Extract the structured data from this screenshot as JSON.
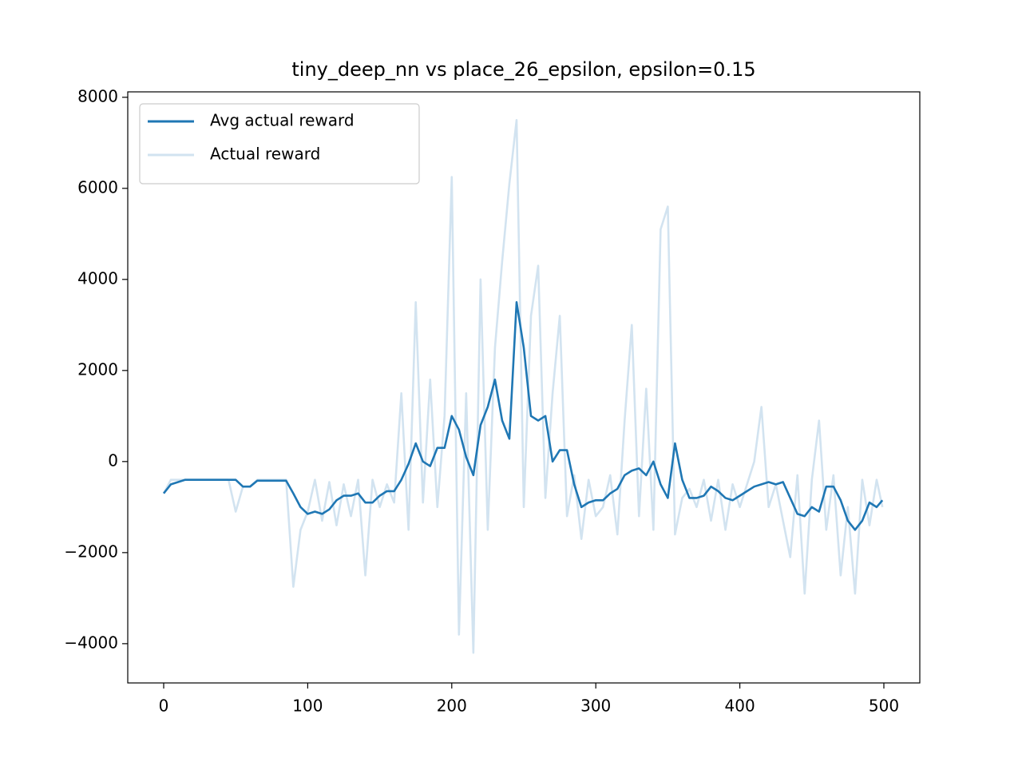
{
  "chart_data": {
    "type": "line",
    "title": "tiny_deep_nn vs place_26_epsilon, epsilon=0.15",
    "x": [
      0,
      5,
      10,
      15,
      20,
      25,
      30,
      35,
      40,
      45,
      50,
      55,
      60,
      65,
      70,
      75,
      80,
      85,
      90,
      95,
      100,
      105,
      110,
      115,
      120,
      125,
      130,
      135,
      140,
      145,
      150,
      155,
      160,
      165,
      170,
      175,
      180,
      185,
      190,
      195,
      200,
      205,
      210,
      215,
      220,
      225,
      230,
      235,
      240,
      245,
      250,
      255,
      260,
      265,
      270,
      275,
      280,
      285,
      290,
      295,
      300,
      305,
      310,
      315,
      320,
      325,
      330,
      335,
      340,
      345,
      350,
      355,
      360,
      365,
      370,
      375,
      380,
      385,
      390,
      395,
      400,
      405,
      410,
      415,
      420,
      425,
      430,
      435,
      440,
      445,
      450,
      455,
      460,
      465,
      470,
      475,
      480,
      485,
      490,
      495,
      499
    ],
    "series": [
      {
        "name": "Avg actual reward",
        "color": "#1f77b4",
        "values": [
          -700,
          -500,
          -450,
          -400,
          -400,
          -400,
          -400,
          -400,
          -400,
          -400,
          -400,
          -550,
          -550,
          -420,
          -420,
          -420,
          -420,
          -420,
          -700,
          -1000,
          -1150,
          -1100,
          -1150,
          -1050,
          -850,
          -750,
          -750,
          -700,
          -900,
          -900,
          -750,
          -650,
          -650,
          -400,
          -50,
          400,
          0,
          -100,
          300,
          300,
          1000,
          700,
          100,
          -300,
          800,
          1200,
          1800,
          900,
          500,
          3500,
          2500,
          1000,
          900,
          1000,
          0,
          250,
          250,
          -500,
          -1000,
          -900,
          -850,
          -850,
          -700,
          -600,
          -300,
          -200,
          -150,
          -300,
          0,
          -500,
          -800,
          400,
          -400,
          -800,
          -800,
          -750,
          -550,
          -650,
          -800,
          -850,
          -750,
          -650,
          -550,
          -500,
          -450,
          -500,
          -450,
          -800,
          -1150,
          -1200,
          -1000,
          -1100,
          -550,
          -550,
          -850,
          -1300,
          -1500,
          -1300,
          -900,
          -1000,
          -850
        ]
      },
      {
        "name": "Actual reward",
        "color": "#d2e3f0",
        "values": [
          -700,
          -400,
          -400,
          -400,
          -400,
          -400,
          -400,
          -400,
          -400,
          -400,
          -1100,
          -550,
          -550,
          -400,
          -400,
          -400,
          -400,
          -400,
          -2750,
          -1500,
          -1100,
          -400,
          -1300,
          -450,
          -1400,
          -500,
          -1200,
          -400,
          -2500,
          -400,
          -1000,
          -500,
          -900,
          1500,
          -1500,
          3500,
          -900,
          1800,
          -1000,
          1000,
          6250,
          -3800,
          1500,
          -4200,
          4000,
          -1500,
          2500,
          4400,
          6100,
          7500,
          -1000,
          3200,
          4300,
          -800,
          1500,
          3200,
          -1200,
          -300,
          -1700,
          -400,
          -1200,
          -1000,
          -300,
          -1600,
          900,
          3000,
          -1200,
          1600,
          -1500,
          5100,
          5600,
          -1600,
          -800,
          -600,
          -1000,
          -400,
          -1300,
          -400,
          -1500,
          -500,
          -1000,
          -500,
          0,
          1200,
          -1000,
          -500,
          -1300,
          -2100,
          -300,
          -2900,
          -400,
          900,
          -1500,
          -300,
          -2500,
          -1000,
          -2900,
          -400,
          -1400,
          -400,
          -1000
        ]
      }
    ],
    "xlim": [
      -24.95,
      524.95
    ],
    "xticks": [
      0,
      100,
      200,
      300,
      400,
      500
    ],
    "ylim": [
      -4862,
      8119
    ],
    "yticks": [
      {
        "value": -4000,
        "label": "−4000"
      },
      {
        "value": -2000,
        "label": "−2000"
      },
      0,
      2000,
      4000,
      6000,
      8000
    ],
    "legend": "upper left"
  }
}
